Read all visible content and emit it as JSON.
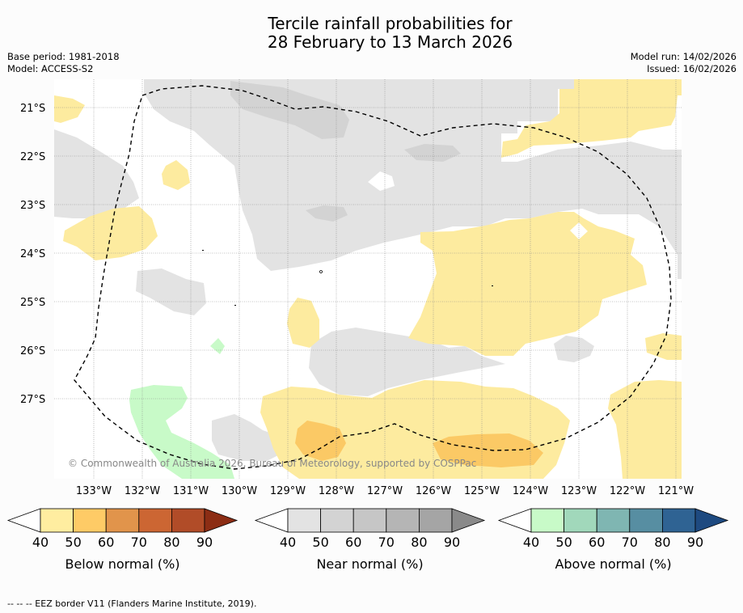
{
  "title": {
    "line1": "Tercile rainfall probabilities for",
    "line2": "28 February to 13 March 2026"
  },
  "meta": {
    "base_period": "Base period: 1981-2018",
    "model": "Model: ACCESS-S2",
    "model_run": "Model run: 14/02/2026",
    "issued": "Issued: 16/02/2026"
  },
  "map": {
    "latitudes": [
      "21°S",
      "22°S",
      "23°S",
      "24°S",
      "25°S",
      "26°S",
      "27°S"
    ],
    "longitudes": [
      "133°W",
      "132°W",
      "131°W",
      "130°W",
      "129°W",
      "128°W",
      "127°W",
      "126°W",
      "125°W",
      "124°W",
      "123°W",
      "122°W",
      "121°W"
    ],
    "copyright": "© Commonwealth of Australia 2026, Bureau of Meteorology, supported by COSPPac",
    "colors": {
      "below_40": "#fdeb9f",
      "below_50": "#fbc965",
      "near_40": "#e3e3e3",
      "near_50": "#d3d3d3",
      "above_40": "#c8fac8",
      "border": "#000000"
    }
  },
  "legends": [
    {
      "label": "Below normal (%)",
      "ticks": [
        "40",
        "50",
        "60",
        "70",
        "80",
        "90"
      ],
      "colors": [
        "#ffeda0",
        "#fecb66",
        "#e1944b",
        "#cc6633",
        "#b14c28",
        "#8c2d14"
      ]
    },
    {
      "label": "Near normal (%)",
      "ticks": [
        "40",
        "50",
        "60",
        "70",
        "80",
        "90"
      ],
      "colors": [
        "#e3e3e3",
        "#d3d3d3",
        "#c6c6c6",
        "#b5b5b5",
        "#a5a5a5",
        "#8a8a8a"
      ]
    },
    {
      "label": "Above normal (%)",
      "ticks": [
        "40",
        "50",
        "60",
        "70",
        "80",
        "90"
      ],
      "colors": [
        "#c8fac8",
        "#a1d8bb",
        "#7fb6b2",
        "#578ea2",
        "#2f6393",
        "#1e4a80"
      ]
    }
  ],
  "footnote": "--  --  -- EEZ border V11 (Flanders Marine Institute, 2019)."
}
